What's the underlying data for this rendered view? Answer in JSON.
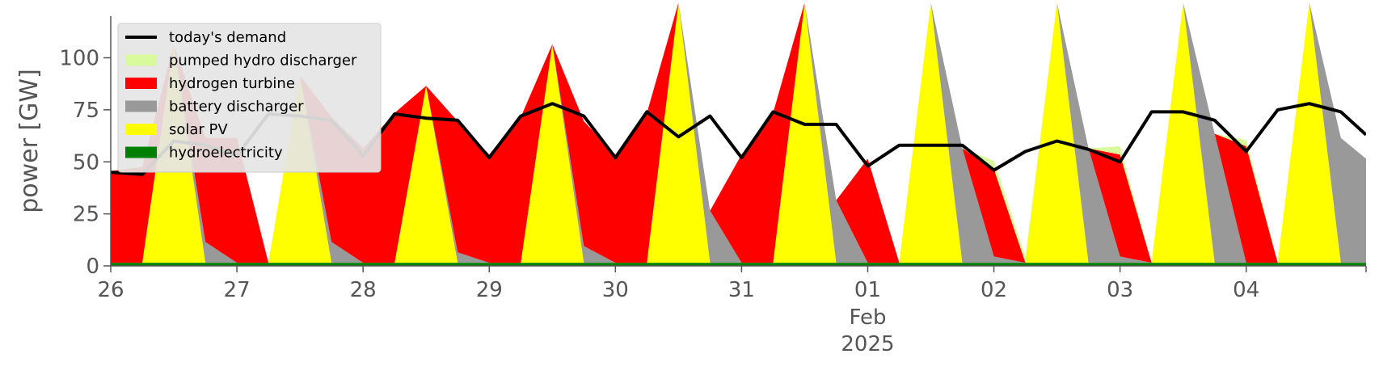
{
  "chart_data": {
    "type": "area",
    "title": "",
    "ylabel": "power [GW]",
    "xlabel": "",
    "ylim": [
      0,
      120
    ],
    "xlim": [
      0,
      9.95
    ],
    "x_axis": {
      "tick_labels": [
        "26",
        "27",
        "28",
        "29",
        "30",
        "31",
        "01",
        "02",
        "03",
        "04"
      ],
      "secondary_labels": {
        "month": "Feb",
        "year": "2025"
      }
    },
    "y_axis": {
      "tick_labels": [
        "0",
        "25",
        "50",
        "75",
        "100"
      ],
      "tick_values": [
        0,
        25,
        50,
        75,
        100
      ]
    },
    "grid": false,
    "legend": {
      "placement": "top-left"
    },
    "x": [
      0.0,
      0.25,
      0.5,
      0.75,
      1.0,
      1.25,
      1.5,
      1.75,
      2.0,
      2.25,
      2.5,
      2.75,
      3.0,
      3.25,
      3.5,
      3.75,
      4.0,
      4.25,
      4.5,
      4.75,
      5.0,
      5.25,
      5.5,
      5.75,
      6.0,
      6.25,
      6.5,
      6.75,
      7.0,
      7.25,
      7.5,
      7.75,
      8.0,
      8.25,
      8.5,
      8.75,
      9.0,
      9.25,
      9.5,
      9.75,
      9.95
    ],
    "series": [
      {
        "name": "hydroelectricity",
        "color": "#008000",
        "values": [
          1.5,
          1.5,
          1.5,
          1.5,
          1.5,
          1.5,
          1.5,
          1.5,
          1.5,
          1.5,
          1.5,
          1.5,
          1.5,
          1.5,
          1.5,
          1.5,
          1.5,
          1.5,
          1.5,
          1.5,
          1.5,
          1.5,
          1.5,
          1.5,
          1.5,
          1.5,
          1.5,
          1.5,
          1.5,
          1.5,
          1.5,
          1.5,
          1.5,
          1.5,
          1.5,
          1.5,
          1.5,
          1.5,
          1.5,
          1.5,
          1.5
        ]
      },
      {
        "name": "solar PV",
        "color": "#ffff00",
        "values": [
          0,
          0,
          105,
          0,
          0,
          0,
          90,
          0,
          0,
          0,
          85,
          0,
          0,
          0,
          105,
          0,
          0,
          0,
          125,
          0,
          0,
          0,
          125,
          0,
          0,
          0,
          125,
          0,
          0,
          0,
          125,
          0,
          0,
          0,
          125,
          0,
          0,
          0,
          125,
          0,
          0
        ]
      },
      {
        "name": "battery discharger",
        "color": "#999999",
        "values": [
          0,
          0,
          0,
          10,
          0,
          0,
          0,
          10,
          0,
          0,
          0,
          5,
          0,
          0,
          0,
          8,
          0,
          0,
          0,
          25,
          0,
          0,
          0,
          30,
          0,
          0,
          0,
          55,
          3,
          0,
          0,
          55,
          3,
          0,
          0,
          62,
          0,
          0,
          0,
          60,
          50
        ]
      },
      {
        "name": "hydrogen turbine",
        "color": "#ff0000",
        "values": [
          44,
          46,
          0,
          50,
          60,
          0,
          0,
          60,
          55,
          72,
          0,
          63,
          52,
          70,
          0,
          60,
          52,
          72,
          0,
          0,
          52,
          72,
          0,
          0,
          50,
          0,
          0,
          0,
          42,
          0,
          0,
          0,
          49,
          0,
          0,
          0,
          56,
          0,
          0,
          0,
          0
        ]
      },
      {
        "name": "pumped hydro discharger",
        "color": "#d9f99d",
        "values": [
          0,
          0,
          0,
          0,
          0,
          0,
          0,
          0,
          0,
          0,
          0,
          0,
          0,
          0,
          0,
          0,
          0,
          0,
          0,
          0,
          0,
          0,
          0,
          0,
          0,
          0,
          0,
          0,
          4,
          3,
          0,
          0,
          4,
          0,
          0,
          0,
          3,
          0,
          0,
          0,
          0
        ]
      },
      {
        "name": "today's demand",
        "color": "#000000",
        "kind": "line",
        "values": [
          45,
          44,
          60,
          58,
          53,
          73,
          72,
          70,
          53,
          73,
          71,
          70,
          52,
          72,
          78,
          72,
          52,
          74,
          62,
          72,
          52,
          74,
          68,
          68,
          48,
          58,
          58,
          58,
          46,
          55,
          60,
          56,
          50,
          74,
          74,
          70,
          55,
          75,
          78,
          74,
          63
        ]
      }
    ]
  }
}
